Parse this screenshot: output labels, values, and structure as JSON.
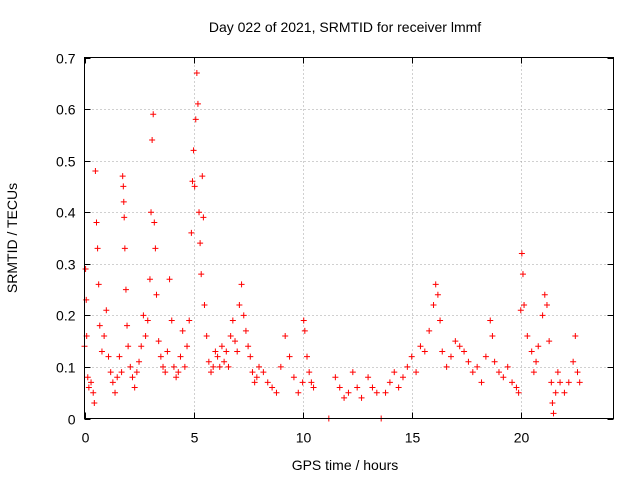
{
  "chart_data": {
    "type": "scatter",
    "title": "Day 022 of 2021, SRMTID for receiver lmmf",
    "xlabel": "GPS time / hours",
    "ylabel": "SRMTID / TECUs",
    "xlim": [
      0,
      24.25
    ],
    "ylim": [
      0,
      0.7
    ],
    "xticks": [
      0,
      5,
      10,
      15,
      20
    ],
    "xtick_labels": [
      "0",
      "5",
      "10",
      "15",
      "20"
    ],
    "yticks": [
      0,
      0.1,
      0.2,
      0.3,
      0.4,
      0.5,
      0.6,
      0.7
    ],
    "ytick_labels": [
      "0",
      "0.1",
      "0.2",
      "0.3",
      "0.4",
      "0.5",
      "0.6",
      "0.7"
    ],
    "grid": true,
    "marker": "+",
    "color": "#ff0000",
    "series": [
      {
        "name": "SRMTID",
        "points": [
          [
            0.0,
            0.14
          ],
          [
            0.05,
            0.29
          ],
          [
            0.08,
            0.23
          ],
          [
            0.1,
            0.16
          ],
          [
            0.15,
            0.08
          ],
          [
            0.2,
            0.06
          ],
          [
            0.3,
            0.07
          ],
          [
            0.4,
            0.05
          ],
          [
            0.45,
            0.03
          ],
          [
            0.5,
            0.48
          ],
          [
            0.55,
            0.38
          ],
          [
            0.6,
            0.33
          ],
          [
            0.65,
            0.26
          ],
          [
            0.7,
            0.18
          ],
          [
            0.8,
            0.13
          ],
          [
            0.9,
            0.16
          ],
          [
            1.0,
            0.21
          ],
          [
            1.1,
            0.12
          ],
          [
            1.2,
            0.09
          ],
          [
            1.3,
            0.07
          ],
          [
            1.4,
            0.05
          ],
          [
            1.5,
            0.08
          ],
          [
            1.6,
            0.12
          ],
          [
            1.7,
            0.09
          ],
          [
            1.75,
            0.47
          ],
          [
            1.78,
            0.45
          ],
          [
            1.8,
            0.42
          ],
          [
            1.82,
            0.39
          ],
          [
            1.85,
            0.33
          ],
          [
            1.9,
            0.25
          ],
          [
            1.95,
            0.18
          ],
          [
            2.0,
            0.14
          ],
          [
            2.1,
            0.1
          ],
          [
            2.2,
            0.08
          ],
          [
            2.3,
            0.06
          ],
          [
            2.4,
            0.09
          ],
          [
            2.5,
            0.11
          ],
          [
            2.6,
            0.14
          ],
          [
            2.7,
            0.2
          ],
          [
            2.8,
            0.16
          ],
          [
            2.9,
            0.19
          ],
          [
            3.0,
            0.27
          ],
          [
            3.05,
            0.4
          ],
          [
            3.1,
            0.54
          ],
          [
            3.15,
            0.59
          ],
          [
            3.2,
            0.38
          ],
          [
            3.25,
            0.33
          ],
          [
            3.3,
            0.24
          ],
          [
            3.4,
            0.15
          ],
          [
            3.5,
            0.12
          ],
          [
            3.6,
            0.1
          ],
          [
            3.7,
            0.09
          ],
          [
            3.8,
            0.13
          ],
          [
            3.9,
            0.27
          ],
          [
            4.0,
            0.19
          ],
          [
            4.1,
            0.1
          ],
          [
            4.2,
            0.08
          ],
          [
            4.3,
            0.09
          ],
          [
            4.4,
            0.12
          ],
          [
            4.5,
            0.17
          ],
          [
            4.6,
            0.1
          ],
          [
            4.7,
            0.14
          ],
          [
            4.8,
            0.19
          ],
          [
            4.9,
            0.36
          ],
          [
            4.95,
            0.46
          ],
          [
            5.0,
            0.52
          ],
          [
            5.05,
            0.45
          ],
          [
            5.1,
            0.58
          ],
          [
            5.15,
            0.67
          ],
          [
            5.2,
            0.61
          ],
          [
            5.25,
            0.4
          ],
          [
            5.3,
            0.34
          ],
          [
            5.35,
            0.28
          ],
          [
            5.4,
            0.47
          ],
          [
            5.45,
            0.39
          ],
          [
            5.5,
            0.22
          ],
          [
            5.6,
            0.16
          ],
          [
            5.7,
            0.11
          ],
          [
            5.8,
            0.09
          ],
          [
            5.9,
            0.1
          ],
          [
            6.0,
            0.13
          ],
          [
            6.1,
            0.12
          ],
          [
            6.2,
            0.1
          ],
          [
            6.3,
            0.14
          ],
          [
            6.4,
            0.11
          ],
          [
            6.5,
            0.13
          ],
          [
            6.6,
            0.1
          ],
          [
            6.7,
            0.16
          ],
          [
            6.8,
            0.19
          ],
          [
            6.9,
            0.15
          ],
          [
            7.0,
            0.13
          ],
          [
            7.1,
            0.22
          ],
          [
            7.2,
            0.26
          ],
          [
            7.3,
            0.2
          ],
          [
            7.4,
            0.17
          ],
          [
            7.5,
            0.14
          ],
          [
            7.6,
            0.12
          ],
          [
            7.7,
            0.09
          ],
          [
            7.8,
            0.07
          ],
          [
            7.9,
            0.08
          ],
          [
            8.0,
            0.1
          ],
          [
            8.2,
            0.09
          ],
          [
            8.4,
            0.07
          ],
          [
            8.6,
            0.06
          ],
          [
            8.8,
            0.05
          ],
          [
            9.0,
            0.1
          ],
          [
            9.2,
            0.16
          ],
          [
            9.4,
            0.12
          ],
          [
            9.6,
            0.08
          ],
          [
            9.8,
            0.05
          ],
          [
            10.0,
            0.07
          ],
          [
            10.05,
            0.19
          ],
          [
            10.1,
            0.17
          ],
          [
            10.2,
            0.12
          ],
          [
            10.3,
            0.09
          ],
          [
            10.4,
            0.07
          ],
          [
            10.5,
            0.06
          ],
          [
            11.2,
            0.0
          ],
          [
            11.5,
            0.08
          ],
          [
            11.7,
            0.06
          ],
          [
            11.9,
            0.04
          ],
          [
            12.1,
            0.05
          ],
          [
            12.3,
            0.09
          ],
          [
            12.5,
            0.06
          ],
          [
            12.7,
            0.04
          ],
          [
            13.0,
            0.08
          ],
          [
            13.2,
            0.06
          ],
          [
            13.4,
            0.05
          ],
          [
            13.6,
            0.0
          ],
          [
            13.8,
            0.05
          ],
          [
            14.0,
            0.07
          ],
          [
            14.2,
            0.09
          ],
          [
            14.4,
            0.06
          ],
          [
            14.6,
            0.08
          ],
          [
            14.8,
            0.1
          ],
          [
            15.0,
            0.12
          ],
          [
            15.2,
            0.09
          ],
          [
            15.4,
            0.14
          ],
          [
            15.6,
            0.13
          ],
          [
            15.8,
            0.17
          ],
          [
            16.0,
            0.22
          ],
          [
            16.1,
            0.26
          ],
          [
            16.2,
            0.24
          ],
          [
            16.3,
            0.19
          ],
          [
            16.4,
            0.13
          ],
          [
            16.6,
            0.1
          ],
          [
            16.8,
            0.12
          ],
          [
            17.0,
            0.15
          ],
          [
            17.2,
            0.14
          ],
          [
            17.4,
            0.13
          ],
          [
            17.6,
            0.11
          ],
          [
            17.8,
            0.09
          ],
          [
            18.0,
            0.1
          ],
          [
            18.2,
            0.07
          ],
          [
            18.4,
            0.12
          ],
          [
            18.6,
            0.19
          ],
          [
            18.7,
            0.16
          ],
          [
            18.8,
            0.11
          ],
          [
            19.0,
            0.09
          ],
          [
            19.2,
            0.08
          ],
          [
            19.4,
            0.1
          ],
          [
            19.6,
            0.07
          ],
          [
            19.8,
            0.06
          ],
          [
            19.9,
            0.05
          ],
          [
            20.0,
            0.21
          ],
          [
            20.05,
            0.32
          ],
          [
            20.1,
            0.28
          ],
          [
            20.15,
            0.22
          ],
          [
            20.3,
            0.16
          ],
          [
            20.5,
            0.13
          ],
          [
            20.6,
            0.09
          ],
          [
            20.7,
            0.11
          ],
          [
            20.8,
            0.14
          ],
          [
            21.0,
            0.2
          ],
          [
            21.1,
            0.24
          ],
          [
            21.2,
            0.22
          ],
          [
            21.3,
            0.15
          ],
          [
            21.4,
            0.07
          ],
          [
            21.45,
            0.03
          ],
          [
            21.5,
            0.01
          ],
          [
            21.6,
            0.05
          ],
          [
            21.7,
            0.09
          ],
          [
            21.8,
            0.07
          ],
          [
            22.0,
            0.05
          ],
          [
            22.2,
            0.07
          ],
          [
            22.4,
            0.11
          ],
          [
            22.5,
            0.16
          ],
          [
            22.6,
            0.09
          ],
          [
            22.7,
            0.07
          ]
        ]
      }
    ]
  }
}
